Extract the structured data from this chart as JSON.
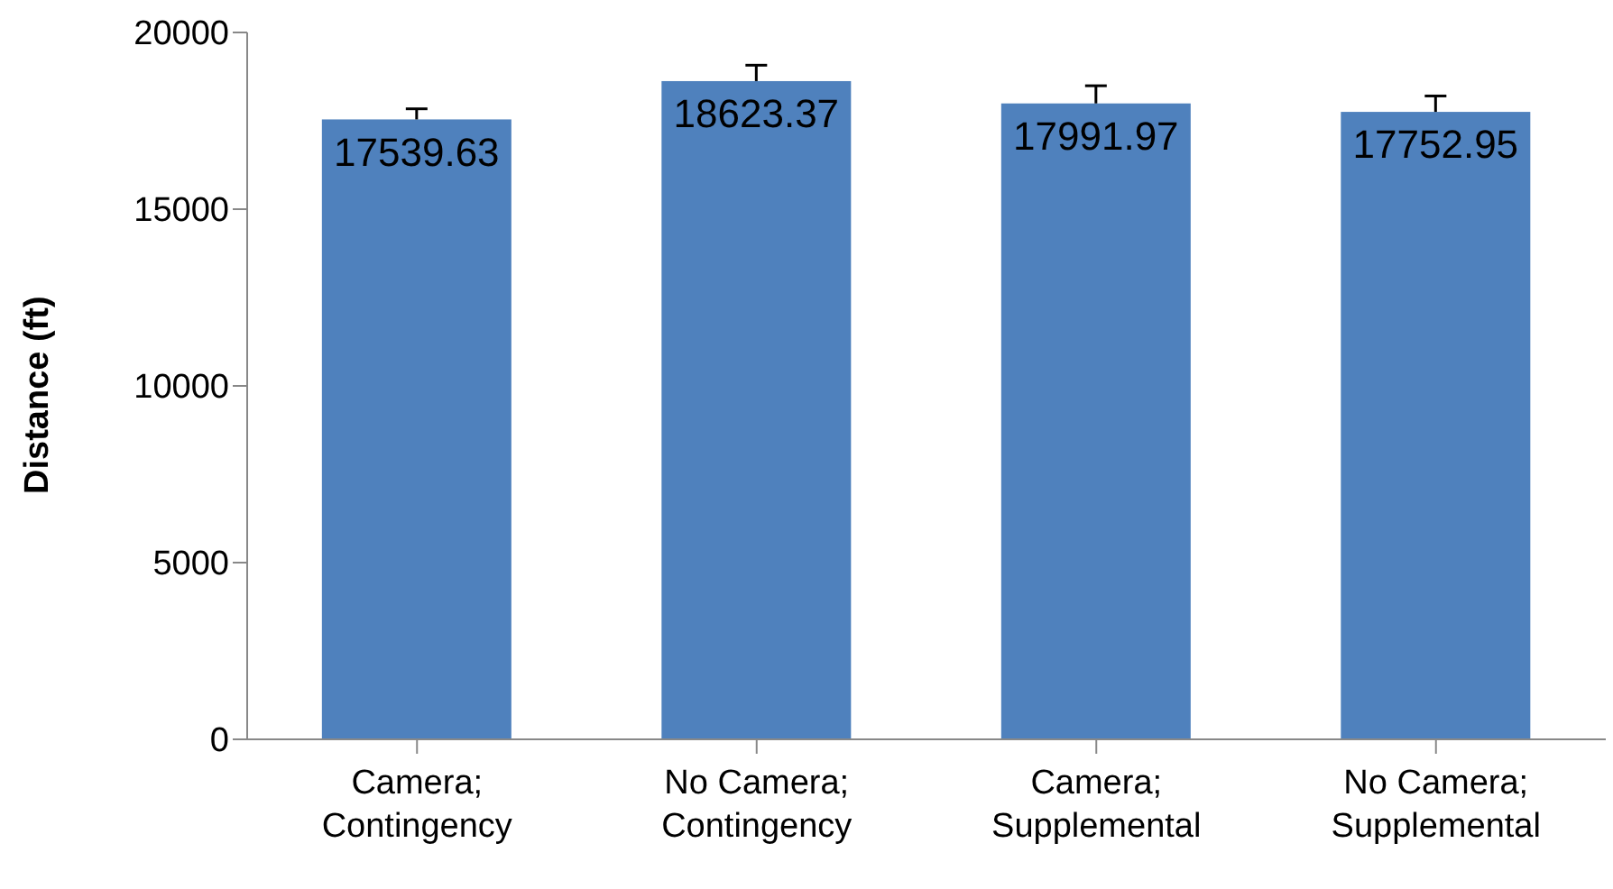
{
  "chart_data": {
    "type": "bar",
    "ylabel": "Distance (ft)",
    "categories": [
      "Camera; Contingency",
      "No Camera; Contingency",
      "Camera; Supplemental",
      "No Camera; Supplemental"
    ],
    "values": [
      17539.63,
      18623.37,
      17991.97,
      17752.95
    ],
    "errors": [
      300,
      450,
      500,
      450
    ],
    "color": "#4f81bd",
    "data_labels": true,
    "ylim": [
      0,
      20000
    ],
    "yticks": [
      0,
      5000,
      10000,
      15000,
      20000
    ],
    "grid": false,
    "legend": false
  }
}
